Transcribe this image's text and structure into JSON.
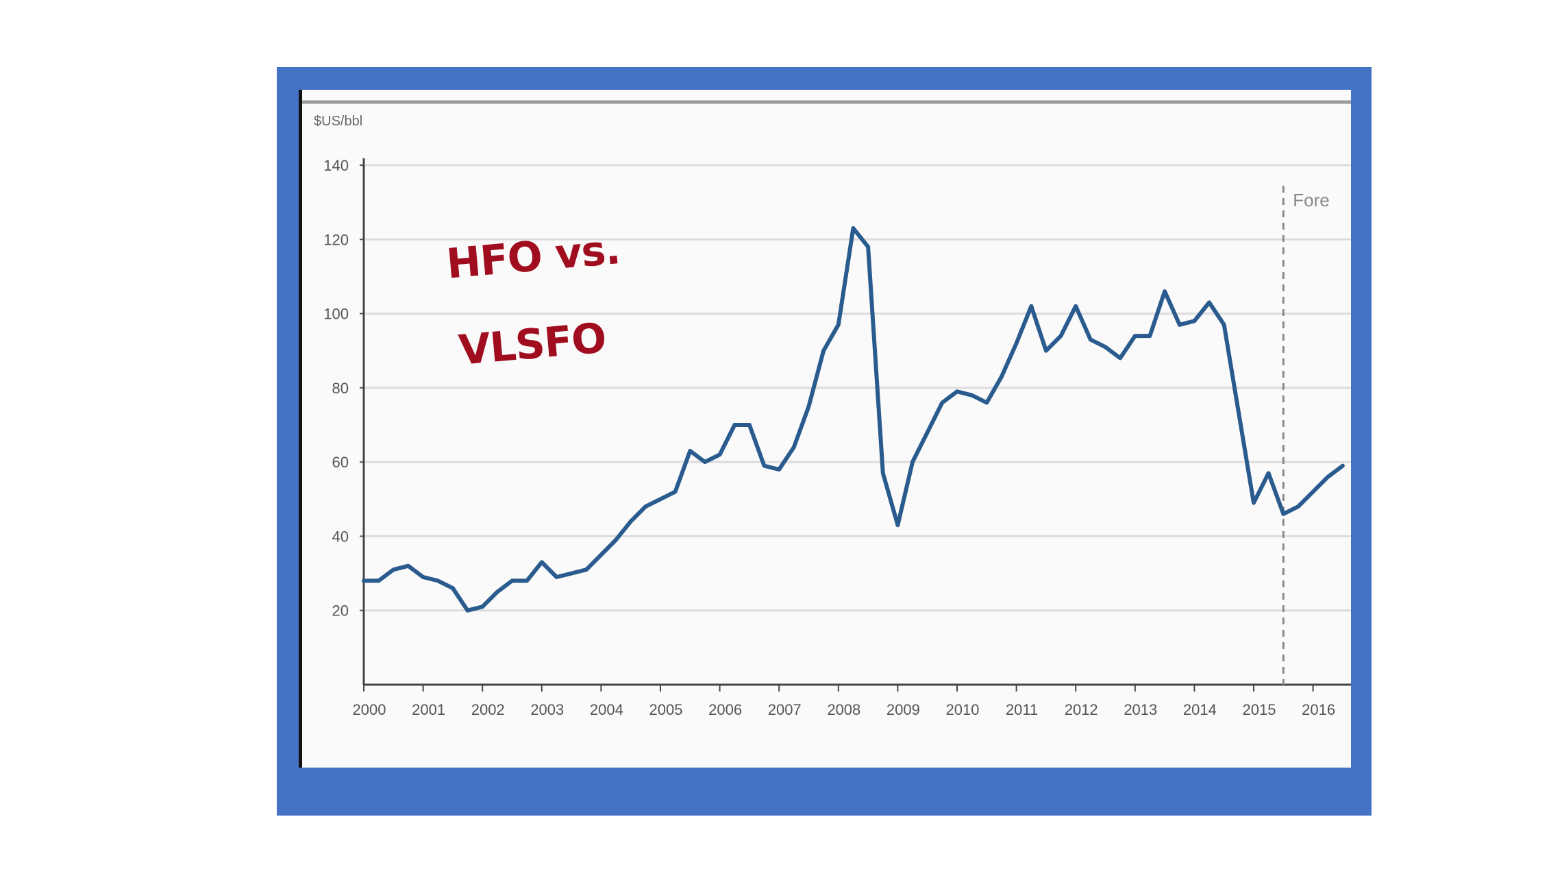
{
  "overlay": {
    "line1": "HFO vs.",
    "line2": "VLSFO",
    "color": "#a00d1e"
  },
  "frame_color": "#4472c4",
  "chart_data": {
    "type": "line",
    "unit_label": "$US/bbl",
    "annotation": "Fore",
    "forecast_start": 2015.5,
    "xlim": [
      2000,
      2016.6
    ],
    "ylim": [
      0,
      140
    ],
    "yticks": [
      20,
      40,
      60,
      80,
      100,
      120,
      140
    ],
    "xticks": [
      "2000",
      "2001",
      "2002",
      "2003",
      "2004",
      "2005",
      "2006",
      "2007",
      "2008",
      "2009",
      "2010",
      "2011",
      "2012",
      "2013",
      "2014",
      "2015",
      "2016"
    ],
    "grid": true,
    "line_color": "#2a5b8e",
    "series": [
      {
        "x": [
          2000.0,
          2000.25,
          2000.5,
          2000.75,
          2001.0,
          2001.25,
          2001.5,
          2001.75,
          2002.0,
          2002.25,
          2002.5,
          2002.75,
          2003.0,
          2003.25,
          2003.5,
          2003.75,
          2004.0,
          2004.25,
          2004.5,
          2004.75,
          2005.0,
          2005.25,
          2005.5,
          2005.75,
          2006.0,
          2006.25,
          2006.5,
          2006.75,
          2007.0,
          2007.25,
          2007.5,
          2007.75,
          2008.0,
          2008.25,
          2008.5,
          2008.75,
          2009.0,
          2009.25,
          2009.5,
          2009.75,
          2010.0,
          2010.25,
          2010.5,
          2010.75,
          2011.0,
          2011.25,
          2011.5,
          2011.75,
          2012.0,
          2012.25,
          2012.5,
          2012.75,
          2013.0,
          2013.25,
          2013.5,
          2013.75,
          2014.0,
          2014.25,
          2014.5,
          2014.75,
          2015.0,
          2015.25,
          2015.5,
          2015.75,
          2016.0,
          2016.25,
          2016.5
        ],
        "y": [
          28,
          28,
          31,
          32,
          29,
          28,
          26,
          20,
          21,
          25,
          28,
          28,
          33,
          29,
          30,
          31,
          35,
          39,
          44,
          48,
          50,
          52,
          63,
          60,
          62,
          70,
          70,
          59,
          58,
          64,
          75,
          90,
          97,
          123,
          118,
          57,
          43,
          60,
          68,
          76,
          79,
          78,
          76,
          83,
          92,
          102,
          90,
          94,
          102,
          93,
          91,
          88,
          94,
          94,
          106,
          97,
          98,
          103,
          97,
          73,
          49,
          57,
          46,
          48,
          52,
          56,
          59
        ]
      }
    ]
  }
}
